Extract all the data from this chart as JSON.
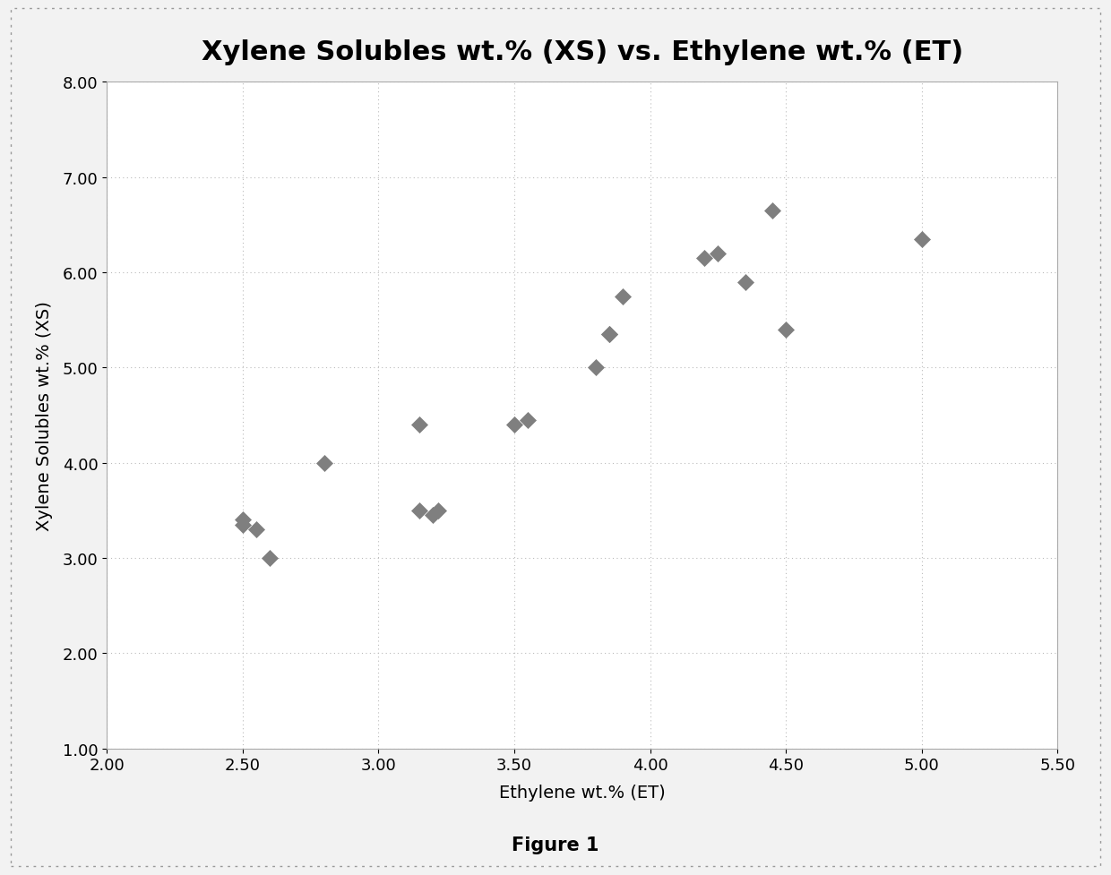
{
  "title": "Xylene Solubles wt.% (XS) vs. Ethylene wt.% (ET)",
  "xlabel": "Ethylene wt.% (ET)",
  "ylabel": "Xylene Solubles wt.% (XS)",
  "caption": "Figure 1",
  "xlim": [
    2.0,
    5.5
  ],
  "ylim": [
    1.0,
    8.0
  ],
  "xticks": [
    2.0,
    2.5,
    3.0,
    3.5,
    4.0,
    4.5,
    5.0,
    5.5
  ],
  "yticks": [
    1.0,
    2.0,
    3.0,
    4.0,
    5.0,
    6.0,
    7.0,
    8.0
  ],
  "data_x": [
    2.5,
    2.5,
    2.55,
    2.6,
    2.8,
    3.15,
    3.15,
    3.2,
    3.22,
    3.5,
    3.55,
    3.8,
    3.85,
    3.85,
    3.9,
    4.2,
    4.25,
    4.35,
    4.45,
    4.5,
    5.0
  ],
  "data_y": [
    3.35,
    3.4,
    3.3,
    3.0,
    4.0,
    4.4,
    3.5,
    3.45,
    3.5,
    4.4,
    4.45,
    5.0,
    5.35,
    5.35,
    5.75,
    6.15,
    6.2,
    5.9,
    6.65,
    5.4,
    6.35
  ],
  "marker_color": "#7f7f7f",
  "marker_size": 9,
  "grid_color": "#bbbbbb",
  "bg_color": "#f2f2f2",
  "plot_bg_color": "#ffffff",
  "border_color": "#aaaaaa",
  "title_fontsize": 22,
  "label_fontsize": 14,
  "tick_fontsize": 13,
  "caption_fontsize": 15
}
